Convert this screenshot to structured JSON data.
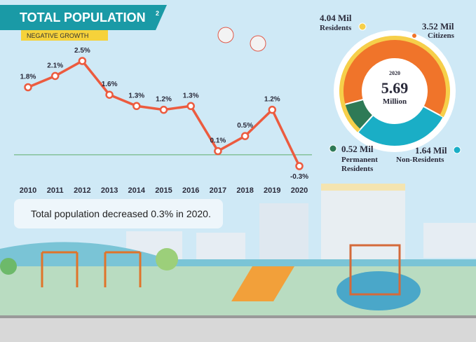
{
  "chart_data": [
    {
      "type": "line",
      "title": "TOTAL POPULATION",
      "title_superscript": "2",
      "subtitle": "NEGATIVE GROWTH",
      "categories": [
        "2010",
        "2011",
        "2012",
        "2013",
        "2014",
        "2015",
        "2016",
        "2017",
        "2018",
        "2019",
        "2020"
      ],
      "values": [
        1.8,
        2.1,
        2.5,
        1.6,
        1.3,
        1.2,
        1.3,
        0.1,
        0.5,
        1.2,
        -0.3
      ],
      "value_labels": [
        "1.8%",
        "2.1%",
        "2.5%",
        "1.6%",
        "1.3%",
        "1.2%",
        "1.3%",
        "0.1%",
        "0.5%",
        "1.2%",
        "-0.3%"
      ],
      "color": "#ec5b3f",
      "note": "Total population decreased 0.3% in 2020."
    },
    {
      "type": "donut",
      "year": "2020",
      "total": 5.69,
      "unit": "Million",
      "categories": [
        "Citizens",
        "Non-Residents",
        "Permanent Residents"
      ],
      "values": [
        3.52,
        1.64,
        0.52
      ],
      "value_labels": [
        "3.52 Mil",
        "1.64 Mil",
        "0.52 Mil"
      ],
      "colors": [
        "#f0742a",
        "#1aaec6",
        "#2e7a56"
      ],
      "ring": {
        "name": "Residents",
        "value": 4.04,
        "value_label": "4.04 Mil",
        "color": "#f6cf4a"
      }
    }
  ]
}
